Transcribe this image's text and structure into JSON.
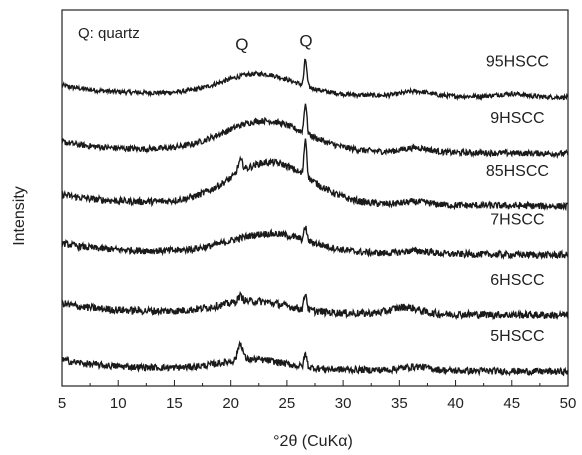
{
  "chart_data": {
    "type": "line",
    "title": "",
    "xlabel": "°2θ (CuKα)",
    "ylabel": "Intensity",
    "xlim": [
      5,
      50
    ],
    "x_ticks": [
      5,
      10,
      15,
      20,
      25,
      30,
      35,
      40,
      45,
      50
    ],
    "y_ticks_shown": false,
    "legend_note": "Q: quartz",
    "peak_labels": [
      {
        "text": "Q",
        "x": 21.0
      },
      {
        "text": "Q",
        "x": 26.7
      }
    ],
    "series": [
      {
        "name": "95HSCC",
        "baseline": 0.78,
        "hump_height": 0.055,
        "hump_center": 22.5,
        "hump_width": 3.2,
        "q_peak_26_7": 0.07,
        "q_peak_21": 0.0,
        "noise": 0.006,
        "extra_bumps": [
          [
            36.5,
            0.012
          ],
          [
            45,
            0.008
          ]
        ]
      },
      {
        "name": "9HSCC",
        "baseline": 0.63,
        "hump_height": 0.08,
        "hump_center": 23.0,
        "hump_width": 3.6,
        "q_peak_26_7": 0.08,
        "q_peak_21": 0.0,
        "noise": 0.008,
        "extra_bumps": [
          [
            36.5,
            0.012
          ]
        ]
      },
      {
        "name": "85HSCC",
        "baseline": 0.49,
        "hump_height": 0.11,
        "hump_center": 23.5,
        "hump_width": 3.5,
        "q_peak_26_7": 0.1,
        "q_peak_21": 0.03,
        "noise": 0.009,
        "extra_bumps": [
          [
            36.5,
            0.008
          ]
        ]
      },
      {
        "name": "7HSCC",
        "baseline": 0.36,
        "hump_height": 0.05,
        "hump_center": 23.5,
        "hump_width": 3.5,
        "q_peak_26_7": 0.035,
        "q_peak_21": 0.0,
        "noise": 0.009,
        "extra_bumps": [
          [
            36.5,
            0.008
          ]
        ]
      },
      {
        "name": "6HSCC",
        "baseline": 0.2,
        "hump_height": 0.03,
        "hump_center": 22.0,
        "hump_width": 3.0,
        "q_peak_26_7": 0.045,
        "q_peak_21": 0.015,
        "noise": 0.01,
        "extra_bumps": [
          [
            35.5,
            0.018
          ]
        ]
      },
      {
        "name": "5HSCC",
        "baseline": 0.05,
        "hump_height": 0.025,
        "hump_center": 22.0,
        "hump_width": 2.8,
        "q_peak_26_7": 0.035,
        "q_peak_21": 0.045,
        "noise": 0.009,
        "extra_bumps": [
          [
            36.5,
            0.01
          ]
        ]
      }
    ],
    "grid": false
  }
}
